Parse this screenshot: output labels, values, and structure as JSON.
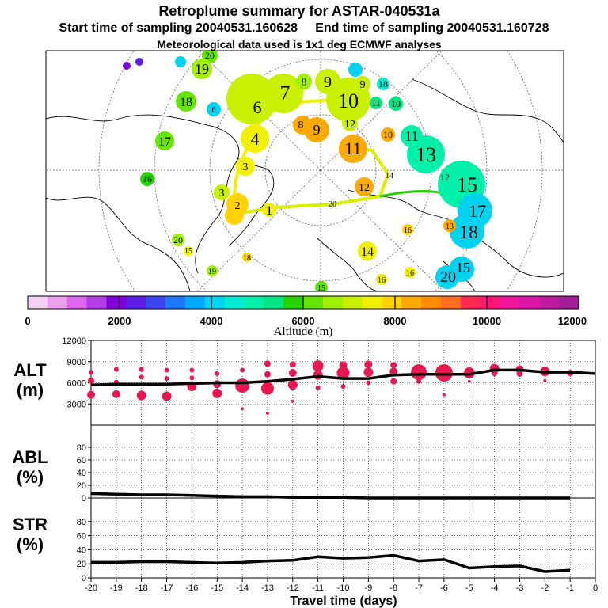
{
  "header": {
    "title": "Retroplume summary for ASTAR-040531a",
    "subtitle": "Start time of sampling 20040531.160628     End time of sampling 20040531.160728",
    "meteo": "Meteorological data used is 1x1 deg ECMWF analyses"
  },
  "colors": {
    "scale": [
      "#f5d0f5",
      "#eea0ee",
      "#dd66ee",
      "#b43ce6",
      "#8200dc",
      "#5a1ee6",
      "#3c46f0",
      "#1e78ff",
      "#00aaff",
      "#00d2f0",
      "#00ebd2",
      "#00f0aa",
      "#00e682",
      "#28d200",
      "#64e600",
      "#a0f000",
      "#c8f000",
      "#f0f000",
      "#ffd200",
      "#ffaa00",
      "#ff8c00",
      "#ff6e1e",
      "#ff2850",
      "#ff1478",
      "#f0149b",
      "#dc14aa",
      "#c01aa0",
      "#a01e96"
    ],
    "points": "#e8174f",
    "line": "#000000",
    "track": "#d8f000",
    "map_border": "#000000"
  },
  "map": {
    "labels": [
      {
        "text": "20",
        "color": "#64e600",
        "size": 12
      },
      {
        "text": "19",
        "color": "#a0f000",
        "size": 18
      },
      {
        "text": "18",
        "color": "#64e600",
        "size": 16
      },
      {
        "text": "17",
        "color": "#64e600",
        "size": 16
      },
      {
        "text": "16",
        "color": "#28d200",
        "size": 12
      },
      {
        "text": "6",
        "color": "#00d2f0",
        "size": 10
      },
      {
        "text": "6",
        "color": "#c8f000",
        "size": 22
      },
      {
        "text": "7",
        "color": "#c8f000",
        "size": 26
      },
      {
        "text": "8",
        "color": "#a0f000",
        "size": 14
      },
      {
        "text": "9",
        "color": "#c8f000",
        "size": 20
      },
      {
        "text": "9",
        "color": "#c8f000",
        "size": 14
      },
      {
        "text": "10",
        "color": "#c8f000",
        "size": 26
      },
      {
        "text": "18",
        "color": "#00d2f0",
        "size": 12
      },
      {
        "text": "11",
        "color": "#00e682",
        "size": 12
      },
      {
        "text": "10",
        "color": "#00e682",
        "size": 12
      },
      {
        "text": "8",
        "color": "#ffaa00",
        "size": 14
      },
      {
        "text": "9",
        "color": "#ffaa00",
        "size": 18
      },
      {
        "text": "12",
        "color": "#c8f000",
        "size": 14
      },
      {
        "text": "10",
        "color": "#ffaa00",
        "size": 12
      },
      {
        "text": "11",
        "color": "#00f0aa",
        "size": 18
      },
      {
        "text": "13",
        "color": "#00f0aa",
        "size": 26
      },
      {
        "text": "11",
        "color": "#ffaa00",
        "size": 22
      },
      {
        "text": "4",
        "color": "#f0f000",
        "size": 22
      },
      {
        "text": "3",
        "color": "#f0f000",
        "size": 14
      },
      {
        "text": "3",
        "color": "#c8f000",
        "size": 14
      },
      {
        "text": "2",
        "color": "#ffd200",
        "size": 14
      },
      {
        "text": "1",
        "color": "#f0f000",
        "size": 16
      },
      {
        "text": "12",
        "color": "#ffaa00",
        "size": 14
      },
      {
        "text": "14",
        "color": "#28d200",
        "size": 10
      },
      {
        "text": "12",
        "color": "#ffaa00",
        "size": 12
      },
      {
        "text": "15",
        "color": "#00f0aa",
        "size": 26
      },
      {
        "text": "17",
        "color": "#00d2f0",
        "size": 22
      },
      {
        "text": "18",
        "color": "#00d2f0",
        "size": 24
      },
      {
        "text": "13",
        "color": "#ffaa00",
        "size": 10
      },
      {
        "text": "16",
        "color": "#ffd200",
        "size": 10
      },
      {
        "text": "14",
        "color": "#f0f000",
        "size": 16
      },
      {
        "text": "16",
        "color": "#f0f000",
        "size": 10
      },
      {
        "text": "15",
        "color": "#00d2f0",
        "size": 18
      },
      {
        "text": "20",
        "color": "#00d2f0",
        "size": 20
      },
      {
        "text": "20",
        "color": "#a0f000",
        "size": 12
      },
      {
        "text": "18",
        "color": "#ffd200",
        "size": 10
      },
      {
        "text": "19",
        "color": "#a0f000",
        "size": 10
      },
      {
        "text": "15",
        "color": "#f0f000",
        "size": 10
      },
      {
        "text": "16",
        "color": "#f0f000",
        "size": 10
      },
      {
        "text": "20",
        "color": "#f0f000",
        "size": 10
      },
      {
        "text": "15",
        "color": "#64e600",
        "size": 10
      }
    ]
  },
  "colorbar": {
    "tick_labels": [
      "0",
      "2000",
      "4000",
      "6000",
      "8000",
      "10000",
      "12000"
    ],
    "label": "Altitude (m)"
  },
  "chart_data": [
    {
      "type": "line",
      "title": "ALT (m)",
      "ylabel_line1": "ALT",
      "ylabel_line2": "(m)",
      "x": [
        -20,
        -19,
        -18,
        -17,
        -16,
        -15,
        -14,
        -13,
        -12,
        -11,
        -10,
        -9,
        -8,
        -7,
        -6,
        -5,
        -4,
        -3,
        -2,
        -1,
        0
      ],
      "values": [
        5700,
        5800,
        5800,
        5800,
        5900,
        6000,
        6000,
        6200,
        6500,
        6900,
        6600,
        6600,
        7100,
        7200,
        7200,
        7200,
        7800,
        7800,
        7500,
        7500,
        7300
      ],
      "ylim": [
        0,
        12000
      ],
      "yticks": [
        "12000",
        "9000",
        "6000",
        "3000"
      ],
      "ytick_values": [
        12000,
        9000,
        6000,
        3000
      ],
      "scatter": [
        {
          "x": -20,
          "y": 7500,
          "r": 3
        },
        {
          "x": -20,
          "y": 6300,
          "r": 4
        },
        {
          "x": -20,
          "y": 4300,
          "r": 5
        },
        {
          "x": -19,
          "y": 7900,
          "r": 3
        },
        {
          "x": -19,
          "y": 6100,
          "r": 3
        },
        {
          "x": -19,
          "y": 4400,
          "r": 5
        },
        {
          "x": -18,
          "y": 7900,
          "r": 3
        },
        {
          "x": -18,
          "y": 6800,
          "r": 3
        },
        {
          "x": -18,
          "y": 4200,
          "r": 6
        },
        {
          "x": -17,
          "y": 7800,
          "r": 3
        },
        {
          "x": -17,
          "y": 6600,
          "r": 3
        },
        {
          "x": -17,
          "y": 4100,
          "r": 6
        },
        {
          "x": -16,
          "y": 7800,
          "r": 3
        },
        {
          "x": -16,
          "y": 6700,
          "r": 3
        },
        {
          "x": -16,
          "y": 5500,
          "r": 6
        },
        {
          "x": -15,
          "y": 7300,
          "r": 3
        },
        {
          "x": -15,
          "y": 5800,
          "r": 5
        },
        {
          "x": -15,
          "y": 4500,
          "r": 6
        },
        {
          "x": -14,
          "y": 7800,
          "r": 3
        },
        {
          "x": -14,
          "y": 5600,
          "r": 9
        },
        {
          "x": -14,
          "y": 2300,
          "r": 2
        },
        {
          "x": -13,
          "y": 8700,
          "r": 4
        },
        {
          "x": -13,
          "y": 7200,
          "r": 4
        },
        {
          "x": -13,
          "y": 5200,
          "r": 8
        },
        {
          "x": -13,
          "y": 1700,
          "r": 2
        },
        {
          "x": -12,
          "y": 8600,
          "r": 4
        },
        {
          "x": -12,
          "y": 7400,
          "r": 5
        },
        {
          "x": -12,
          "y": 5700,
          "r": 6
        },
        {
          "x": -12,
          "y": 3400,
          "r": 2
        },
        {
          "x": -11,
          "y": 8400,
          "r": 7
        },
        {
          "x": -11,
          "y": 7100,
          "r": 6
        },
        {
          "x": -11,
          "y": 5300,
          "r": 3
        },
        {
          "x": -10,
          "y": 8500,
          "r": 5
        },
        {
          "x": -10,
          "y": 7400,
          "r": 8
        },
        {
          "x": -10,
          "y": 5500,
          "r": 3
        },
        {
          "x": -9,
          "y": 8600,
          "r": 5
        },
        {
          "x": -9,
          "y": 7500,
          "r": 6
        },
        {
          "x": -9,
          "y": 6000,
          "r": 3
        },
        {
          "x": -8,
          "y": 8500,
          "r": 4
        },
        {
          "x": -8,
          "y": 7600,
          "r": 5
        },
        {
          "x": -8,
          "y": 6200,
          "r": 4
        },
        {
          "x": -7,
          "y": 7500,
          "r": 10
        },
        {
          "x": -7,
          "y": 6200,
          "r": 3
        },
        {
          "x": -6,
          "y": 7400,
          "r": 11
        },
        {
          "x": -6,
          "y": 4300,
          "r": 2
        },
        {
          "x": -5,
          "y": 7400,
          "r": 7
        },
        {
          "x": -5,
          "y": 6200,
          "r": 2
        },
        {
          "x": -4,
          "y": 8000,
          "r": 6
        },
        {
          "x": -4,
          "y": 7400,
          "r": 4
        },
        {
          "x": -3,
          "y": 7900,
          "r": 5
        },
        {
          "x": -3,
          "y": 7300,
          "r": 4
        },
        {
          "x": -2,
          "y": 7600,
          "r": 6
        },
        {
          "x": -2,
          "y": 6300,
          "r": 2
        },
        {
          "x": -1,
          "y": 7400,
          "r": 4
        }
      ]
    },
    {
      "type": "line",
      "title": "ABL (%)",
      "ylabel_line1": "ABL",
      "ylabel_line2": "(%)",
      "x": [
        -20,
        -19,
        -18,
        -17,
        -16,
        -15,
        -14,
        -13,
        -12,
        -11,
        -10,
        -9,
        -8,
        -7,
        -6,
        -5,
        -4,
        -3,
        -2,
        -1
      ],
      "values": [
        7,
        6,
        5,
        5,
        4,
        3,
        2,
        2,
        1,
        1,
        1,
        0,
        0,
        0,
        0,
        0,
        0,
        0,
        0,
        0
      ],
      "ylim": [
        0,
        100
      ],
      "yticks": [
        "80",
        "60",
        "40",
        "20",
        "0"
      ],
      "ytick_values": [
        80,
        60,
        40,
        20,
        0
      ]
    },
    {
      "type": "line",
      "title": "STR (%)",
      "ylabel_line1": "STR",
      "ylabel_line2": "(%)",
      "x": [
        -20,
        -19,
        -18,
        -17,
        -16,
        -15,
        -14,
        -13,
        -12,
        -11,
        -10,
        -9,
        -8,
        -7,
        -6,
        -5,
        -4,
        -3,
        -2,
        -1
      ],
      "values": [
        22,
        22,
        23,
        23,
        22,
        21,
        22,
        24,
        25,
        30,
        28,
        29,
        32,
        24,
        26,
        14,
        16,
        17,
        9,
        11
      ],
      "ylim": [
        0,
        100
      ],
      "yticks": [
        "80",
        "60",
        "40",
        "20",
        "0"
      ],
      "ytick_values": [
        80,
        60,
        40,
        20,
        0
      ],
      "xlabel": "Travel time (days)",
      "xtick_labels": [
        "-20",
        "-19",
        "-18",
        "-17",
        "-16",
        "-15",
        "-14",
        "-13",
        "-12",
        "-11",
        "-10",
        "-9",
        "-8",
        "-7",
        "-6",
        "-5",
        "-4",
        "-3",
        "-2",
        "-1",
        "0"
      ]
    }
  ]
}
